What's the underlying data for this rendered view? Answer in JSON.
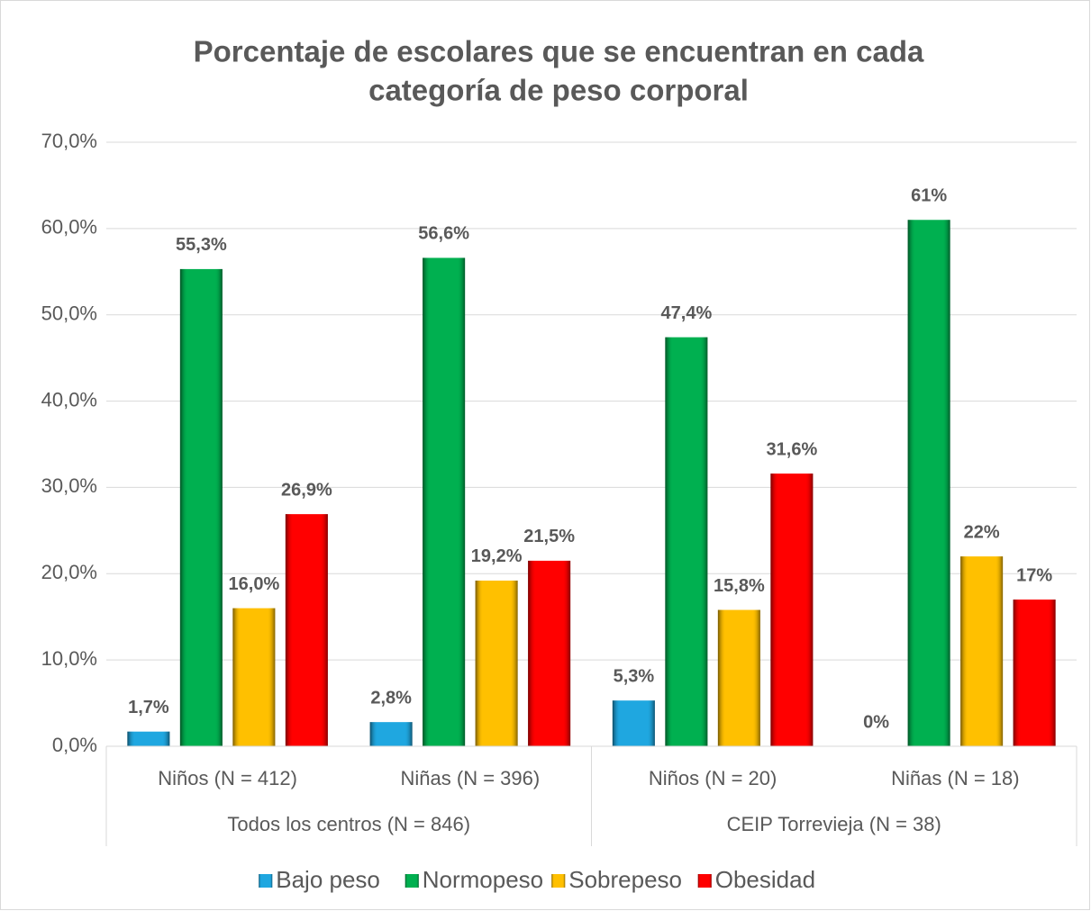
{
  "chart_data": {
    "type": "bar",
    "title": [
      "Porcentaje de escolares que se encuentran en cada",
      "categoría de peso corporal"
    ],
    "categories": [
      "Niños (N = 412)",
      "Niñas (N = 396)",
      "Niños (N = 20)",
      "Niñas (N = 18)"
    ],
    "category_groups": [
      {
        "label": "Todos los centros (N = 846)",
        "count": 2
      },
      {
        "label": "CEIP Torrevieja (N = 38)",
        "count": 2
      }
    ],
    "series": [
      {
        "name": "Bajo peso",
        "color": "#1fa7e0",
        "values": [
          1.7,
          2.8,
          5.3,
          0
        ],
        "value_labels": [
          "1,7%",
          "2,8%",
          "5,3%",
          "0%"
        ]
      },
      {
        "name": "Normopeso",
        "color": "#00b050",
        "values": [
          55.3,
          56.6,
          47.4,
          61
        ],
        "value_labels": [
          "55,3%",
          "56,6%",
          "47,4%",
          "61%"
        ]
      },
      {
        "name": "Sobrepeso",
        "color": "#ffc000",
        "values": [
          16.0,
          19.2,
          15.8,
          22
        ],
        "value_labels": [
          "16,0%",
          "19,2%",
          "15,8%",
          "22%"
        ]
      },
      {
        "name": "Obesidad",
        "color": "#ff0000",
        "values": [
          26.9,
          21.5,
          31.6,
          17
        ],
        "value_labels": [
          "26,9%",
          "21,5%",
          "31,6%",
          "17%"
        ]
      }
    ],
    "ylim": [
      0,
      70
    ],
    "yticks": [
      {
        "value": 0,
        "label": "0,0%"
      },
      {
        "value": 10,
        "label": "10,0%"
      },
      {
        "value": 20,
        "label": "20,0%"
      },
      {
        "value": 30,
        "label": "30,0%"
      },
      {
        "value": 40,
        "label": "40,0%"
      },
      {
        "value": 50,
        "label": "50,0%"
      },
      {
        "value": 60,
        "label": "60,0%"
      },
      {
        "value": 70,
        "label": "70,0%"
      }
    ],
    "grid": true,
    "legend": "bottom"
  }
}
